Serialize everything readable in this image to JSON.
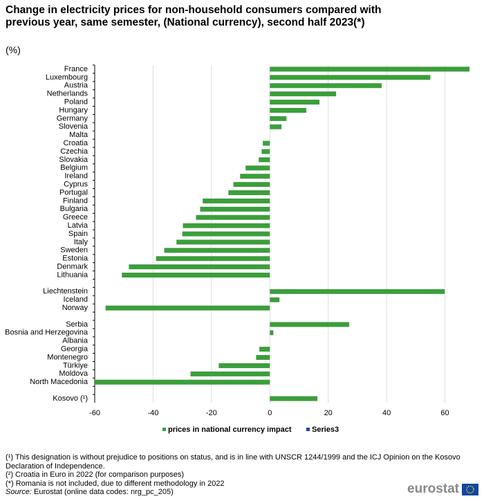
{
  "chart_data": {
    "type": "bar",
    "orientation": "horizontal",
    "title": "Change in electricity prices for non-household consumers compared with previous year, same semester, (National currency), second half 2023(*)",
    "subtitle": "(%)",
    "categories": [
      "France",
      "Luxembourg",
      "Austria",
      "Netherlands",
      "Poland",
      "Hungary",
      "Germany",
      "Slovenia",
      "Malta",
      "Croatia",
      "Czechia",
      "Slovakia",
      "Belgium",
      "Ireland",
      "Cyprus",
      "Portugal",
      "Finland",
      "Bulgaria",
      "Greece",
      "Latvia",
      "Spain",
      "Italy",
      "Sweden",
      "Estonia",
      "Denmark",
      "Lithuania",
      null,
      "Liechtenstein",
      "Iceland",
      "Norway",
      null,
      "Serbia",
      "Bosnia and Herzegovina",
      "Albania",
      "Georgia",
      "Montenegro",
      "Türkiye",
      "Moldova",
      "North Macedonia",
      null,
      "Kosovo (¹)"
    ],
    "series": [
      {
        "name": "prices in national currency impact",
        "color": "#3c9e3c",
        "values": [
          68.4,
          55,
          38.3,
          22.7,
          17,
          12.5,
          5.7,
          4,
          null,
          -2.4,
          -2.8,
          -3.8,
          -8.3,
          -10.2,
          -12.5,
          -14.2,
          -23,
          -23.9,
          -25.3,
          -29.8,
          -30,
          -32,
          -36.2,
          -39,
          -48.3,
          -50.7,
          null,
          59.9,
          3.3,
          -56.3,
          null,
          27.2,
          1.2,
          null,
          -3.6,
          -4.7,
          -17.5,
          -27.2,
          -60,
          null,
          16.3
        ]
      },
      {
        "name": "Series3",
        "color": "#2c3fa6",
        "values": [
          null,
          null,
          null,
          null,
          null,
          null,
          null,
          null,
          null,
          null,
          null,
          null,
          null,
          null,
          null,
          null,
          null,
          null,
          null,
          null,
          null,
          null,
          null,
          null,
          null,
          null,
          null,
          null,
          null,
          null,
          null,
          null,
          null,
          null,
          null,
          null,
          null,
          null,
          null,
          null,
          null
        ]
      }
    ],
    "xlim": [
      -60,
      68.4
    ],
    "xticks": [
      -60,
      -40,
      -20,
      0,
      20,
      40,
      60
    ],
    "grid": true,
    "legend": "bottom",
    "footnotes": [
      "(¹) This designation is without prejudice to positions on status, and is in line with UNSCR 1244/1999 and the ICJ Opinion on the Kosovo Declaration of Independence.",
      "(²) Croatia in Euro in 2022 (for comparison purposes)",
      "(*) Romania is not included, due to different methodology in 2022"
    ],
    "source_label": "Source:",
    "source": "Eurostat (online data codes: nrg_pc_205)",
    "logo": "eurostat"
  }
}
